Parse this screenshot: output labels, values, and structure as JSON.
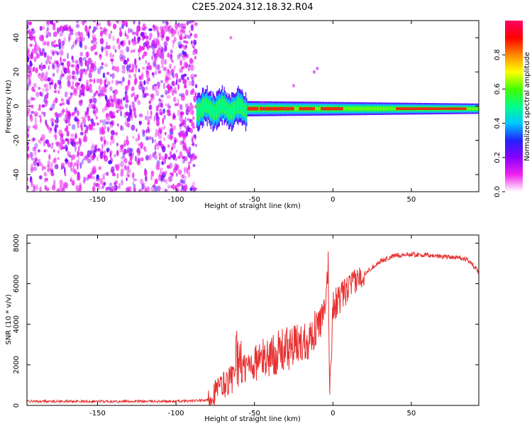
{
  "title": "C2E5.2024.312.18.32.R04",
  "colors": {
    "snr_line": "#e83030",
    "colormap": [
      "#ffffff",
      "#ee22ee",
      "#8800ff",
      "#2222ff",
      "#00c8ff",
      "#00ff88",
      "#44ff00",
      "#ffff00",
      "#ff8800",
      "#ff0000",
      "#ff0066"
    ]
  },
  "chart_data": [
    {
      "type": "heatmap",
      "xlabel": "Height of straight line (km)",
      "ylabel": "Frequency (Hz)",
      "xlim": [
        -195,
        93
      ],
      "ylim": [
        -50,
        50
      ],
      "x_ticks": [
        "-150",
        "-100",
        "-50",
        "0",
        "50"
      ],
      "y_ticks": [
        "-40",
        "-20",
        "0",
        "20",
        "40"
      ],
      "noise_region_x": [
        -195,
        -87
      ],
      "signal_region_x": [
        -87,
        93
      ],
      "signal_center_freq_hz": -1.5,
      "high_amplitude_segments_x": [
        [
          -55,
          -48
        ],
        [
          -47,
          -25
        ],
        [
          -22,
          -12
        ],
        [
          -8,
          6
        ],
        [
          40,
          85
        ]
      ],
      "colorbar": {
        "label": "Normalized spectral amplitude",
        "range": [
          0,
          1
        ],
        "ticks": [
          "0.0",
          "0.2",
          "0.4",
          "0.6",
          "0.8"
        ]
      }
    },
    {
      "type": "line",
      "xlabel": "Height of straight line (km)",
      "ylabel": "SNR (10 * v/v)",
      "xlim": [
        -195,
        93
      ],
      "ylim": [
        0,
        8400
      ],
      "x_ticks": [
        "-150",
        "-100",
        "-50",
        "0",
        "50"
      ],
      "y_ticks": [
        "0",
        "2000",
        "4000",
        "6000",
        "8000"
      ],
      "series": [
        {
          "x": [
            -195,
            -150,
            -100,
            -80,
            -75,
            -65,
            -55,
            -45,
            -35,
            -25,
            -15,
            -10,
            -5,
            -3,
            -2,
            0,
            5,
            10,
            20,
            30,
            40,
            50,
            60,
            70,
            80,
            88,
            90,
            93
          ],
          "values": [
            200,
            200,
            200,
            250,
            700,
            1300,
            1900,
            2300,
            2600,
            2900,
            3300,
            3900,
            4500,
            7000,
            500,
            4900,
            5300,
            5800,
            6500,
            7100,
            7400,
            7450,
            7400,
            7350,
            7300,
            7100,
            6800,
            6600
          ]
        }
      ]
    }
  ]
}
